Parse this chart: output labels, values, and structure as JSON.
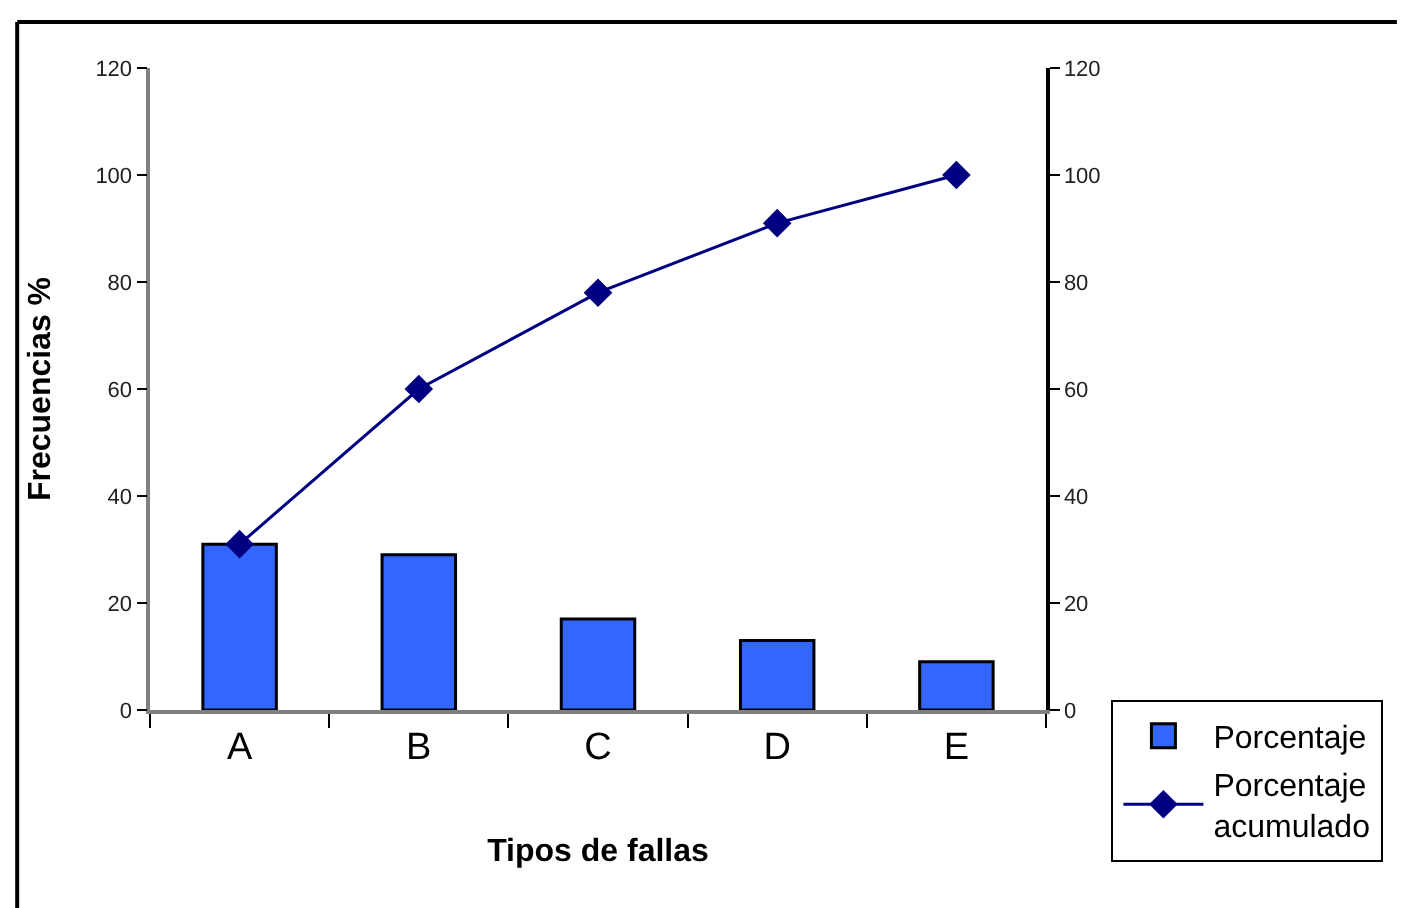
{
  "chart_data": {
    "type": "bar",
    "xlabel": "Tipos de fallas",
    "ylabel": "Frecuencias %",
    "categories": [
      "A",
      "B",
      "C",
      "D",
      "E"
    ],
    "series": [
      {
        "name": "Porcentaje",
        "color": "#3366ff",
        "values": [
          31,
          29,
          17,
          13,
          9
        ]
      },
      {
        "name": "Porcentaje acumulado",
        "type": "line",
        "axis": "y2",
        "color": "#000080",
        "values": [
          31,
          60,
          78,
          91,
          100
        ]
      }
    ],
    "ylim": [
      0,
      120
    ],
    "yticks": [
      0,
      20,
      40,
      60,
      80,
      100,
      120
    ],
    "y2lim": [
      0,
      120
    ],
    "y2ticks": [
      0,
      20,
      40,
      60,
      80,
      100,
      120
    ],
    "marker": "diamond",
    "grid": false,
    "legend": "bottom right"
  }
}
